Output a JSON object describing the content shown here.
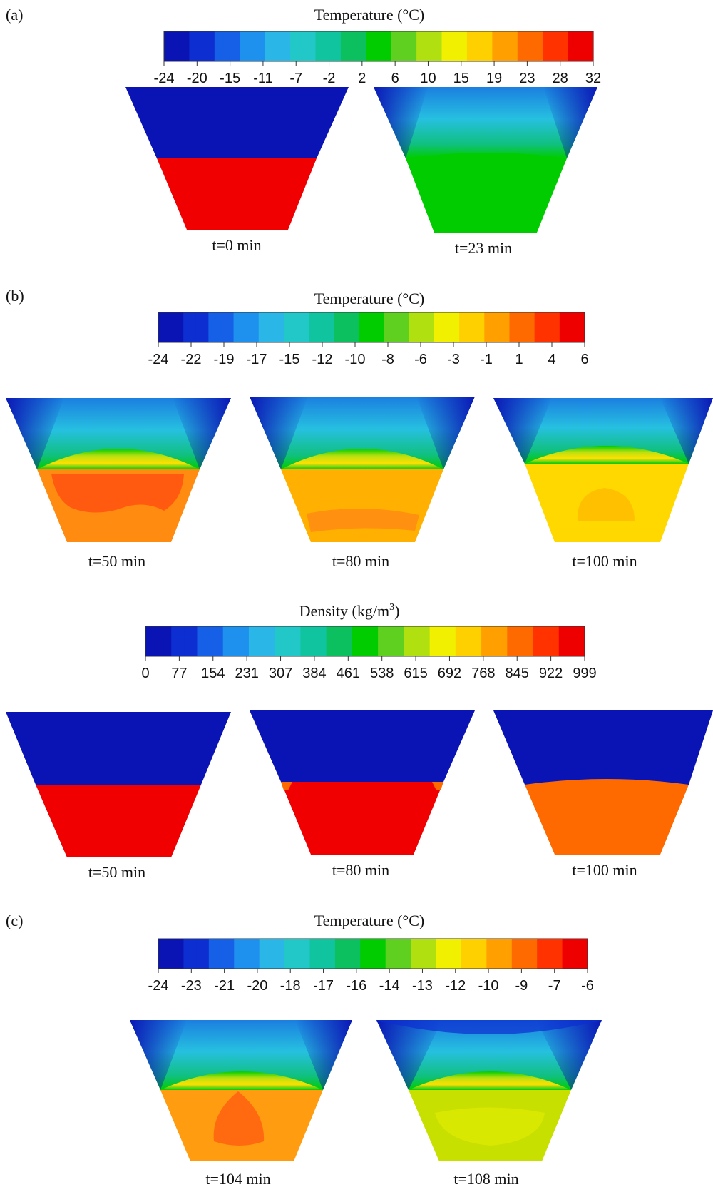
{
  "colormap": [
    "#0a14b4",
    "#0d2ed0",
    "#1560e6",
    "#1e90ee",
    "#2ab6e6",
    "#22c8c8",
    "#10c4a0",
    "#0cc060",
    "#00cc00",
    "#60d020",
    "#b0e010",
    "#f0f000",
    "#ffd000",
    "#ffa000",
    "#ff6a00",
    "#ff3200",
    "#ee0000"
  ],
  "panels": [
    {
      "id": "a",
      "letter": "(a)",
      "colorbar": {
        "title": "Temperature (°C)",
        "ticks": [
          "-24",
          "-20",
          "-15",
          "-11",
          "-7",
          "-2",
          "2",
          "6",
          "10",
          "15",
          "19",
          "23",
          "28",
          "32"
        ]
      },
      "snapshots": [
        {
          "label": "t=0 min",
          "top_color": "#0a14b4",
          "bottom_color": "#f00000"
        },
        {
          "label": "t=23 min",
          "top_color": "#2ab6e6",
          "bottom_color": "#00cc00"
        }
      ]
    },
    {
      "id": "b-temp",
      "letter": "(b)",
      "colorbar": {
        "title": "Temperature (°C)",
        "ticks": [
          "-24",
          "-22",
          "-19",
          "-17",
          "-15",
          "-12",
          "-10",
          "-8",
          "-6",
          "-3",
          "-1",
          "1",
          "4",
          "6"
        ]
      },
      "snapshots": [
        {
          "label": "t=50 min",
          "top_color": "#1e90ee",
          "bottom_color": "#ff8c10",
          "core_color": "#ff5a10"
        },
        {
          "label": "t=80 min",
          "top_color": "#1e90ee",
          "bottom_color": "#ffb000",
          "core_color": "#ff9010"
        },
        {
          "label": "t=100 min",
          "top_color": "#1e90ee",
          "bottom_color": "#ffd800",
          "core_color": "#ffc000"
        }
      ]
    },
    {
      "id": "b-density",
      "letter": "",
      "colorbar": {
        "title_main": "Density (kg/m",
        "title_sup": "3",
        "title_end": ")",
        "ticks": [
          "0",
          "77",
          "154",
          "231",
          "307",
          "384",
          "461",
          "538",
          "615",
          "692",
          "768",
          "845",
          "922",
          "999"
        ]
      },
      "snapshots": [
        {
          "label": "t=50 min",
          "top_color": "#0a14b4",
          "bottom_color": "#f00000"
        },
        {
          "label": "t=80 min",
          "top_color": "#0a14b4",
          "bottom_color": "#f00000"
        },
        {
          "label": "t=100 min",
          "top_color": "#0a14b4",
          "bottom_color": "#ff6a00"
        }
      ]
    },
    {
      "id": "c",
      "letter": "(c)",
      "colorbar": {
        "title": "Temperature (°C)",
        "ticks": [
          "-24",
          "-23",
          "-21",
          "-20",
          "-18",
          "-17",
          "-16",
          "-14",
          "-13",
          "-12",
          "-10",
          "-9",
          "-7",
          "-6"
        ]
      },
      "snapshots": [
        {
          "label": "t=104 min",
          "top_color": "#1e90ee",
          "bottom_color": "#ff9c10",
          "core_color": "#ff6a10"
        },
        {
          "label": "t=108 min",
          "top_color": "#1e90ee",
          "bottom_color": "#c8e000",
          "core_color": "#d8e800"
        }
      ]
    }
  ]
}
